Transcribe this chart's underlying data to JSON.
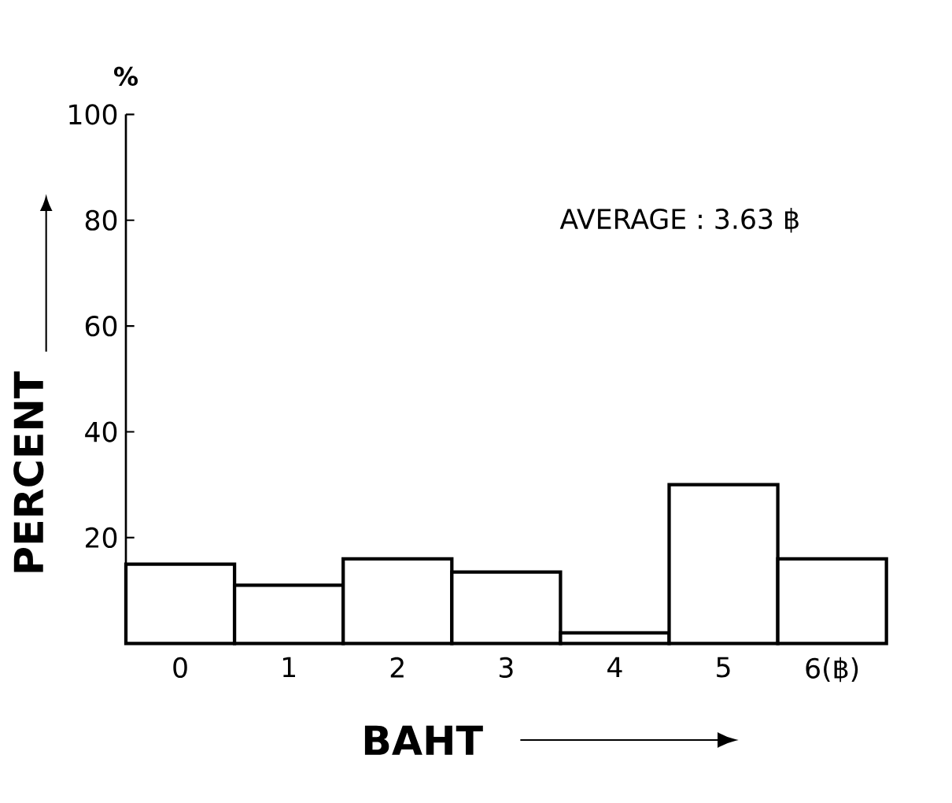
{
  "chart_data": {
    "type": "bar",
    "categories": [
      "0",
      "1",
      "2",
      "3",
      "4",
      "5",
      "6(฿)"
    ],
    "values": [
      15,
      11,
      16,
      13.5,
      2,
      30,
      16
    ],
    "color": "#ffffff",
    "xlabel": "BAHT",
    "ylabel": "PERCENT",
    "ylim": [
      0,
      100
    ],
    "yticks": [
      20,
      40,
      60,
      80,
      100
    ],
    "annotations": [
      "%",
      "AVERAGE : 3.63 ฿"
    ]
  }
}
